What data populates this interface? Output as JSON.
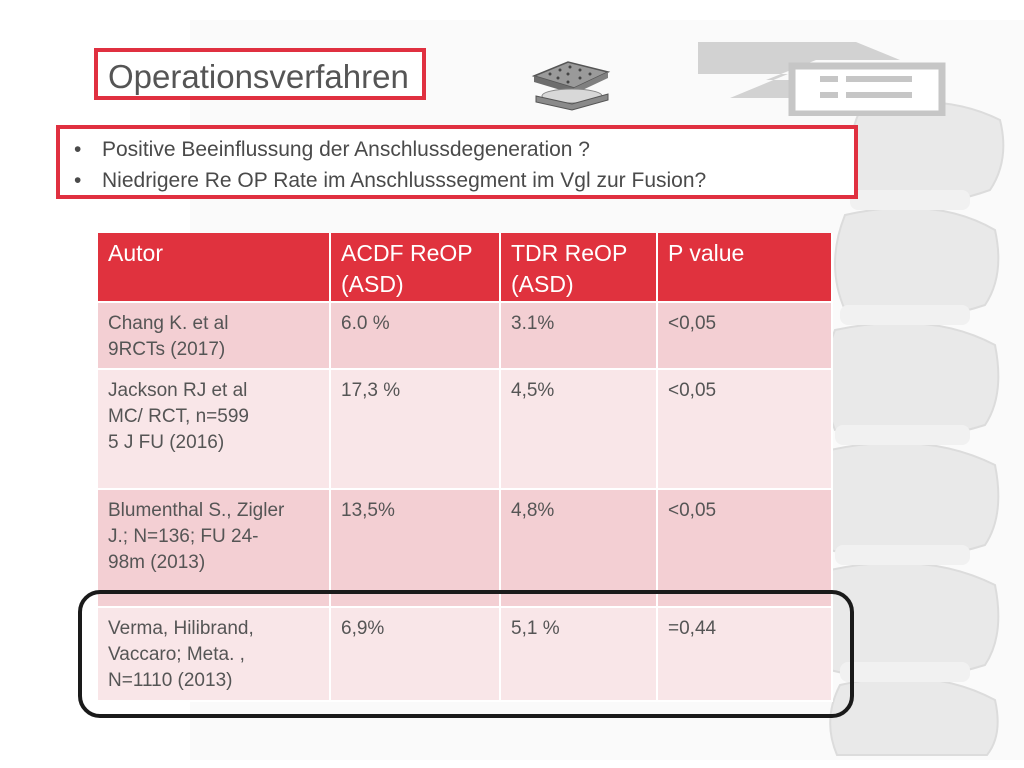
{
  "slide": {
    "title": "Operationsverfahren",
    "bullets": [
      "Positive Beeinflussung der Anschlussdegeneration ?",
      "Niedrigere Re OP Rate im Anschlusssegment im Vgl zur Fusion?"
    ]
  },
  "table": {
    "headers": {
      "autor": "Autor",
      "acdf_line1": "ACDF ReOP",
      "acdf_line2": "(ASD)",
      "tdr_line1": "TDR ReOP",
      "tdr_line2": "(ASD)",
      "pvalue": "P value"
    },
    "rows": [
      {
        "autor_lines": [
          "Chang K. et al",
          "9RCTs (2017)"
        ],
        "acdf": "6.0 %",
        "tdr": "3.1%",
        "p": "<0,05"
      },
      {
        "autor_lines": [
          "Jackson RJ et al",
          "MC/ RCT, n=599",
          "5 J FU (2016)"
        ],
        "acdf": "17,3 %",
        "tdr": "4,5%",
        "p": "<0,05"
      },
      {
        "autor_lines": [
          "Blumenthal S., Zigler",
          "J.; N=136; FU 24-",
          "98m (2013)"
        ],
        "acdf": "13,5%",
        "tdr": "4,8%",
        "p": "<0,05"
      },
      {
        "autor_lines": [
          "Verma, Hilibrand,",
          "Vaccaro; Meta. ,",
          "N=1110 (2013)"
        ],
        "acdf": "6,9%",
        "tdr": "5,1 %",
        "p": "=0,44"
      }
    ]
  },
  "colors": {
    "accent_red": "#e0323e",
    "row_dark": "#f3cfd3",
    "row_light": "#f9e6e8",
    "highlight_border": "#1a1a1a"
  },
  "icons": {
    "implant": "disc-prosthesis-icon",
    "logo": "document-arrow-logo",
    "background": "spine-vertebrae-image"
  }
}
